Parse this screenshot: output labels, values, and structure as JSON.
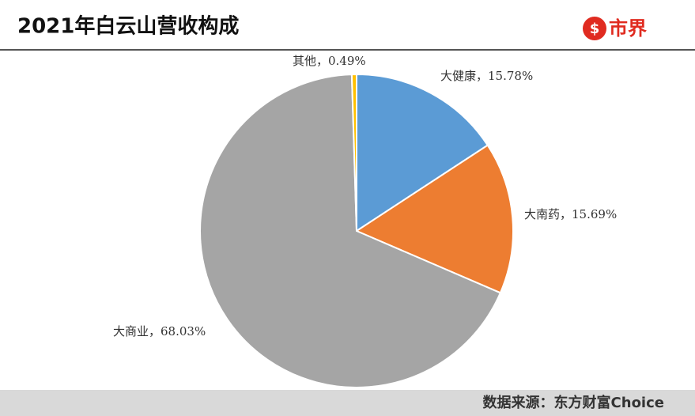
{
  "chart_data": {
    "type": "pie",
    "title": "2021年白云山营收构成",
    "categories": [
      "大健康",
      "大南药",
      "大商业",
      "其他"
    ],
    "values": [
      15.78,
      15.69,
      68.03,
      0.49
    ],
    "value_labels": [
      "大健康，15.78%",
      "大南药，15.69%",
      "大商业，68.03%",
      "其他，0.49%"
    ],
    "colors": [
      "#5b9bd5",
      "#ed7d31",
      "#a5a5a5",
      "#ffc000"
    ]
  },
  "logo": "市界",
  "source": "数据来源：东方财富Choice"
}
